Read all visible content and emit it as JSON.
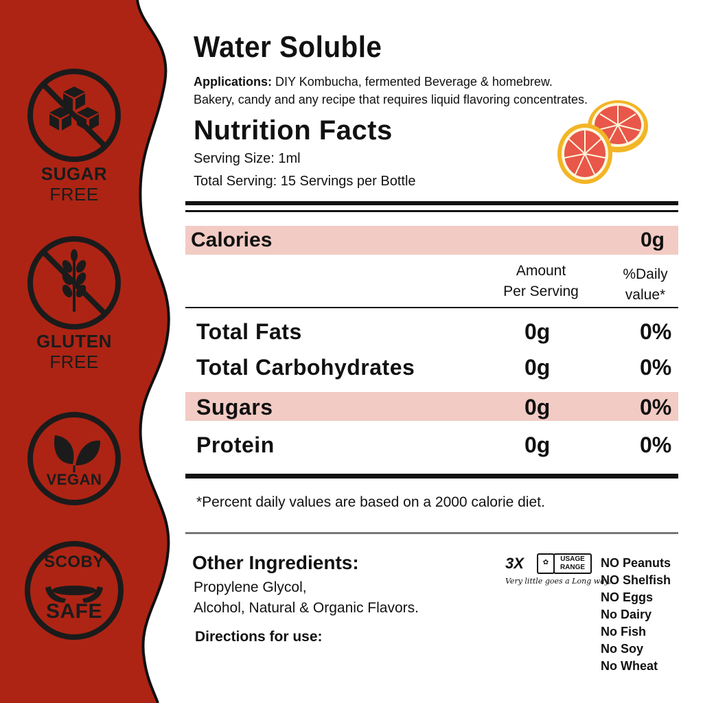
{
  "colors": {
    "brand_red": "#ad2414",
    "highlight_row": "#f2cbc4",
    "ink": "#1b1b1b"
  },
  "badges": [
    {
      "icon": "sugar-cube-icon",
      "line1": "SUGAR",
      "line2": "FREE"
    },
    {
      "icon": "wheat-icon",
      "line1": "GLUTEN",
      "line2": "FREE"
    },
    {
      "icon": "leaf-icon",
      "line1": "VEGAN"
    },
    {
      "icon": "scoby-hands-icon",
      "line1": "SCOBY",
      "line2": "SAFE"
    }
  ],
  "header": {
    "title": "Water Soluble",
    "applications_label": "Applications:",
    "applications_text": "DIY Kombucha, fermented Beverage & homebrew.",
    "applications_text2": "Bakery, candy and any recipe that requires liquid flavoring concentrates."
  },
  "nutrition": {
    "title": "Nutrition Facts",
    "serving_size": "Serving Size: 1ml",
    "total_serving": "Total Serving: 15 Servings per Bottle",
    "calories_label": "Calories",
    "calories_value": "0g",
    "col_amount_1": "Amount",
    "col_amount_2": "Per Serving",
    "col_daily_1": "%Daily",
    "col_daily_2": "value*",
    "rows": [
      {
        "label": "Total Fats",
        "amount": "0g",
        "daily": "0%"
      },
      {
        "label": "Total Carbohydrates",
        "amount": "0g",
        "daily": "0%"
      },
      {
        "label": "Sugars",
        "amount": "0g",
        "daily": "0%"
      },
      {
        "label": "Protein",
        "amount": "0g",
        "daily": "0%"
      }
    ],
    "footnote": "*Percent daily values are based on a 2000 calorie diet."
  },
  "ingredients": {
    "title": "Other Ingredients:",
    "line1": "Propylene Glycol,",
    "line2": "Alcohol, Natural & Organic Flavors.",
    "directions": "Directions for use:"
  },
  "usage_badge": {
    "multiplier": "3X",
    "label1": "USAGE",
    "label2": "RANGE",
    "tagline": "Very little goes a Long way!"
  },
  "allergens": [
    "NO Peanuts",
    "NO Shelfish",
    "NO Eggs",
    "No Dairy",
    "No Fish",
    "No Soy",
    "No Wheat"
  ]
}
